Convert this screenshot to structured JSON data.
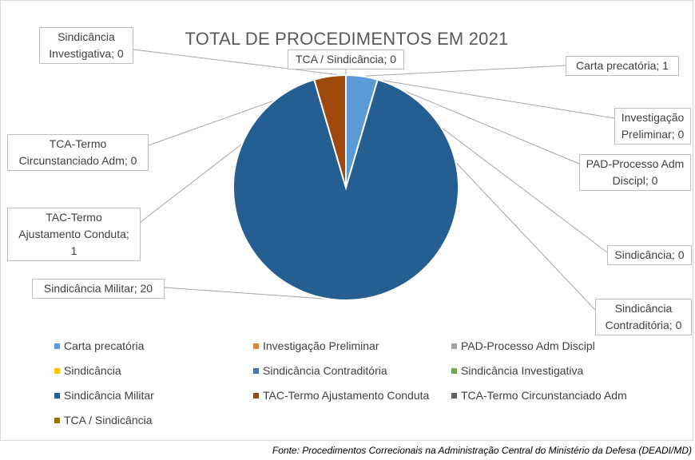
{
  "chart_data": {
    "type": "pie",
    "title": "TOTAL DE PROCEDIMENTOS EM 2021",
    "slices": [
      {
        "name": "Carta precatória",
        "value": 1,
        "color": "#5b9bd5",
        "label": "Carta precatória; 1"
      },
      {
        "name": "Investigação Preliminar",
        "value": 0,
        "color": "#ed7d31",
        "label": "Investigação Preliminar; 0"
      },
      {
        "name": "PAD-Processo Adm Discipl",
        "value": 0,
        "color": "#a5a5a5",
        "label": "PAD-Processo Adm Discipl; 0"
      },
      {
        "name": "Sindicância",
        "value": 0,
        "color": "#ffc000",
        "label": "Sindicância; 0"
      },
      {
        "name": "Sindicância Contraditória",
        "value": 0,
        "color": "#4472c4",
        "label": "Sindicância Contraditória; 0"
      },
      {
        "name": "Sindicância Investigativa",
        "value": 0,
        "color": "#70ad47",
        "label": "Sindicância Investigativa; 0"
      },
      {
        "name": "Sindicância Militar",
        "value": 20,
        "color": "#255e91",
        "label": "Sindicância Militar; 20"
      },
      {
        "name": "TAC-Termo Ajustamento Conduta",
        "value": 1,
        "color": "#9e480e",
        "label": "TAC-Termo Ajustamento Conduta; 1"
      },
      {
        "name": "TCA-Termo Circunstanciado Adm",
        "value": 0,
        "color": "#636363",
        "label": "TCA-Termo Circunstanciado Adm; 0"
      },
      {
        "name": "TCA / Sindicância",
        "value": 0,
        "color": "#997300",
        "label": "TCA / Sindicância; 0"
      }
    ],
    "legend_position": "bottom"
  },
  "callouts": [
    {
      "text": "Carta precatória; 1"
    },
    {
      "text": "Investigação Preliminar; 0"
    },
    {
      "text": "PAD-Processo Adm Discipl; 0"
    },
    {
      "text": "Sindicância; 0"
    },
    {
      "text": "Sindicância Contraditória; 0"
    },
    {
      "text": "Sindicância Investigativa; 0"
    },
    {
      "text": "Sindicância Militar; 20"
    },
    {
      "text": "TAC-Termo Ajustamento Conduta; 1"
    },
    {
      "text": "TCA-Termo Circunstanciado Adm; 0"
    },
    {
      "text": "TCA / Sindicância; 0"
    }
  ],
  "source": "Fonte: Procedimentos Correcionais na Administração Central do Ministério da Defesa (DEADI/MD)"
}
